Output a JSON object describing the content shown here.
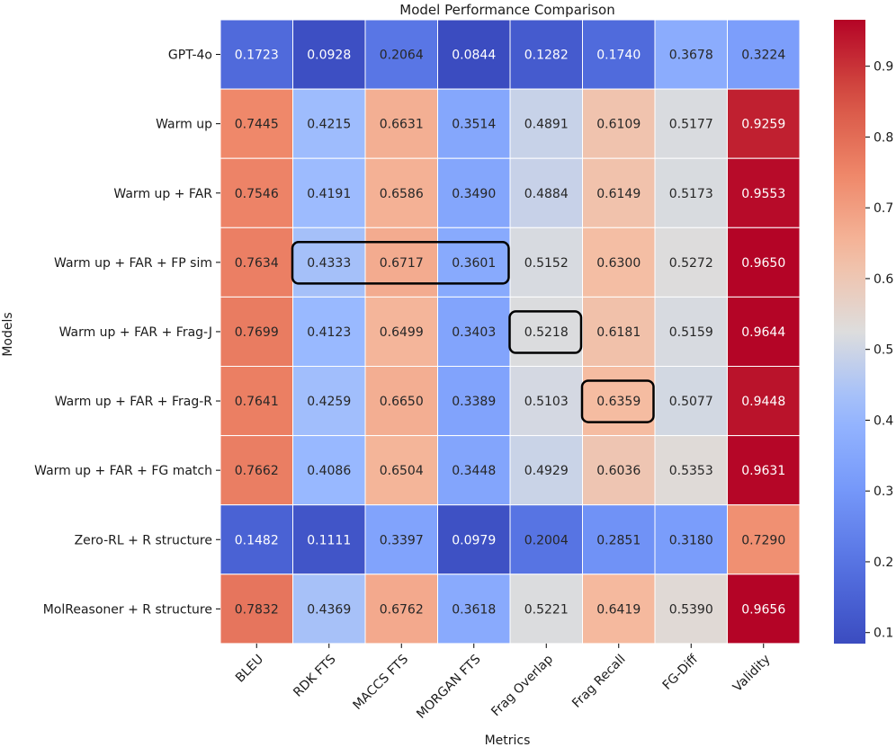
{
  "chart_data": {
    "type": "heatmap",
    "title": "Model Performance Comparison",
    "xlabel": "Metrics",
    "ylabel": "Models",
    "columns": [
      "BLEU",
      "RDK FTS",
      "MACCS FTS",
      "MORGAN FTS",
      "Frag Overlap",
      "Frag Recall",
      "FG-Diff",
      "Validity"
    ],
    "rows": [
      "GPT-4o",
      "Warm up",
      "Warm up + FAR",
      "Warm up + FAR + FP sim",
      "Warm up + FAR + Frag-J",
      "Warm up + FAR + Frag-R",
      "Warm up + FAR + FG match",
      "Zero-RL + R structure",
      "MolReasoner + R structure"
    ],
    "values": [
      [
        0.1723,
        0.0928,
        0.2064,
        0.0844,
        0.1282,
        0.174,
        0.3678,
        0.3224
      ],
      [
        0.7445,
        0.4215,
        0.6631,
        0.3514,
        0.4891,
        0.6109,
        0.5177,
        0.9259
      ],
      [
        0.7546,
        0.4191,
        0.6586,
        0.349,
        0.4884,
        0.6149,
        0.5173,
        0.9553
      ],
      [
        0.7634,
        0.4333,
        0.6717,
        0.3601,
        0.5152,
        0.63,
        0.5272,
        0.965
      ],
      [
        0.7699,
        0.4123,
        0.6499,
        0.3403,
        0.5218,
        0.6181,
        0.5159,
        0.9644
      ],
      [
        0.7641,
        0.4259,
        0.665,
        0.3389,
        0.5103,
        0.6359,
        0.5077,
        0.9448
      ],
      [
        0.7662,
        0.4086,
        0.6504,
        0.3448,
        0.4929,
        0.6036,
        0.5353,
        0.9631
      ],
      [
        0.1482,
        0.1111,
        0.3397,
        0.0979,
        0.2004,
        0.2851,
        0.318,
        0.729
      ],
      [
        0.7832,
        0.4369,
        0.6762,
        0.3618,
        0.5221,
        0.6419,
        0.539,
        0.9656
      ]
    ],
    "number_format": "4 decimals",
    "colormap": "coolwarm",
    "color_range": [
      0.0844,
      0.9656
    ],
    "colorbar_ticks": [
      0.1,
      0.2,
      0.3,
      0.4,
      0.5,
      0.6,
      0.7,
      0.8,
      0.9
    ],
    "highlights": [
      {
        "row": 3,
        "col_start": 1,
        "col_end": 3
      },
      {
        "row": 4,
        "col_start": 4,
        "col_end": 4
      },
      {
        "row": 5,
        "col_start": 5,
        "col_end": 5
      }
    ],
    "colors": {
      "low": "#3b4cc0",
      "mid": "#dddddd",
      "high": "#b40426",
      "grid": "#ffffff",
      "highlight_border": "#000000"
    }
  }
}
